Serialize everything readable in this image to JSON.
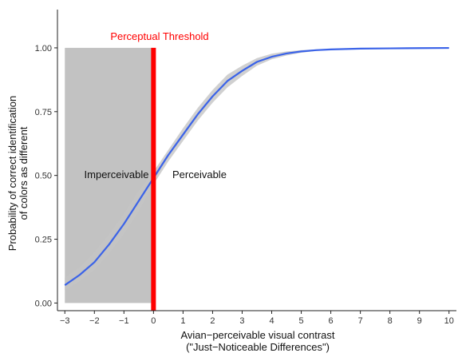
{
  "chart_data": {
    "type": "line",
    "title": "",
    "xlabel_line1": "Avian−perceivable visual contrast",
    "xlabel_line2": "(\"Just−Noticeable Differences\")",
    "ylabel_line1": "Probability of correct identification",
    "ylabel_line2": "of colors as different",
    "xlim": [
      -3.25,
      10.25
    ],
    "ylim": [
      -0.03,
      1.15
    ],
    "x_ticks": [
      -3,
      -2,
      -1,
      0,
      1,
      2,
      3,
      4,
      5,
      6,
      7,
      8,
      9,
      10
    ],
    "x_tick_labels": [
      "−3",
      "−2",
      "−1",
      "0",
      "1",
      "2",
      "3",
      "4",
      "5",
      "6",
      "7",
      "8",
      "9",
      "10"
    ],
    "y_ticks": [
      0,
      0.25,
      0.5,
      0.75,
      1.0
    ],
    "y_tick_labels": [
      "0.00",
      "0.25",
      "0.50",
      "0.75",
      "1.00"
    ],
    "grid": false,
    "series": [
      {
        "x": [
          -3,
          -2.5,
          -2,
          -1.5,
          -1,
          -0.5,
          0,
          0.5,
          1,
          1.5,
          2,
          2.5,
          3,
          3.5,
          4,
          4.5,
          5,
          5.5,
          6,
          7,
          8,
          9,
          10
        ],
        "y": [
          0.07,
          0.11,
          0.16,
          0.23,
          0.31,
          0.4,
          0.49,
          0.58,
          0.66,
          0.74,
          0.81,
          0.87,
          0.91,
          0.945,
          0.965,
          0.978,
          0.986,
          0.991,
          0.994,
          0.997,
          0.998,
          0.999,
          0.9995
        ],
        "lower": [
          0.05,
          0.085,
          0.13,
          0.195,
          0.27,
          0.36,
          0.465,
          0.555,
          0.635,
          0.715,
          0.785,
          0.845,
          0.89,
          0.93,
          0.955,
          0.97,
          0.981,
          0.988,
          0.992,
          0.996,
          0.998,
          0.999,
          0.9995
        ],
        "upper": [
          0.1,
          0.14,
          0.2,
          0.27,
          0.35,
          0.44,
          0.515,
          0.6,
          0.685,
          0.765,
          0.835,
          0.895,
          0.93,
          0.96,
          0.977,
          0.986,
          0.991,
          0.994,
          0.996,
          0.998,
          0.999,
          0.9995,
          0.9998
        ],
        "color": "#3b63e8",
        "band_color": "#c4c4c4"
      }
    ],
    "shaded_region": {
      "x_from": -3,
      "x_to": 0,
      "y_from": 0,
      "y_to": 1,
      "color": "#c2c2c2",
      "label": "Imperceivable"
    },
    "threshold": {
      "x": 0,
      "color": "#ff0000",
      "label": "Perceptual Threshold"
    },
    "right_label": "Perceivable"
  }
}
